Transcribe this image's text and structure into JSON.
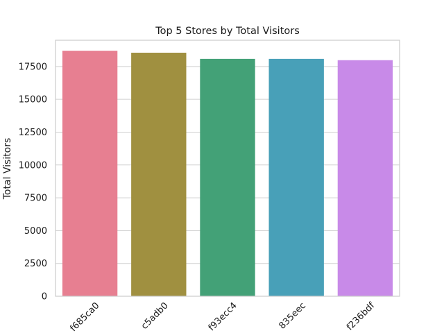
{
  "chart_data": {
    "type": "bar",
    "title": "Top 5 Stores by Total Visitors",
    "xlabel": "",
    "ylabel": "Total Visitors",
    "categories": [
      "f685ca0",
      "c5adb0",
      "f93ecc4",
      "835eec",
      "f236bdf"
    ],
    "values": [
      18700,
      18550,
      18080,
      18080,
      17980
    ],
    "colors": [
      "#e77f91",
      "#a09040",
      "#43a177",
      "#48a0b8",
      "#c88ae8"
    ],
    "ylim": [
      0,
      19500
    ],
    "yticks": [
      0,
      2500,
      5000,
      7500,
      10000,
      12500,
      15000,
      17500
    ],
    "ytick_labels": [
      "0",
      "2500",
      "5000",
      "7500",
      "10000",
      "12500",
      "15000",
      "17500"
    ],
    "grid": true,
    "legend": "none"
  }
}
